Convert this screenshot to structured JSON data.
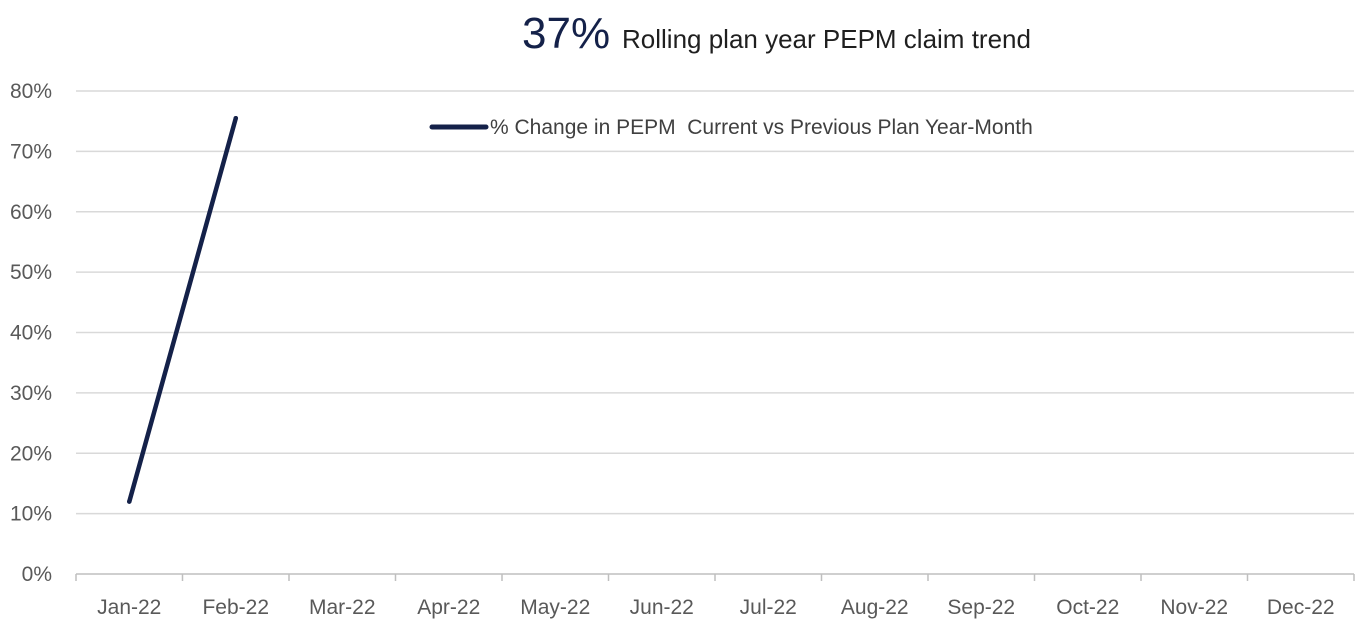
{
  "chart_data": {
    "type": "line",
    "title_value": "37%",
    "title": "Rolling plan year PEPM claim trend",
    "categories": [
      "Jan-22",
      "Feb-22",
      "Mar-22",
      "Apr-22",
      "May-22",
      "Jun-22",
      "Jul-22",
      "Aug-22",
      "Sep-22",
      "Oct-22",
      "Nov-22",
      "Dec-22"
    ],
    "y_ticks": [
      "0%",
      "10%",
      "20%",
      "30%",
      "40%",
      "50%",
      "60%",
      "70%",
      "80%"
    ],
    "ylim": [
      0,
      80
    ],
    "y_unit": "%",
    "grid": true,
    "legend_position": "top",
    "series": [
      {
        "name": "% Change in PEPM  Current vs Previous Plan Year-Month",
        "color": "#142149",
        "values": [
          12,
          75.5,
          null,
          null,
          null,
          null,
          null,
          null,
          null,
          null,
          null,
          null
        ]
      }
    ]
  }
}
